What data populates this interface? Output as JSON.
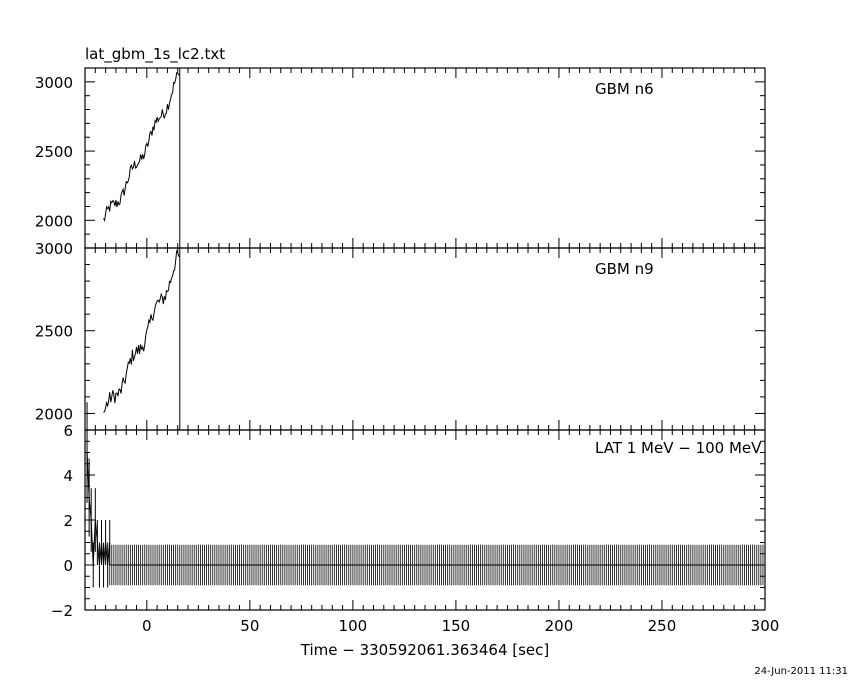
{
  "title": "lat_gbm_1s_lc2.txt",
  "xlabel": "Time − 330592061.363464 [sec]",
  "footer": "24-Jun-2011 11:31",
  "chart_data": [
    {
      "type": "line",
      "series_label": "GBM n6",
      "xlim": [
        -30,
        300
      ],
      "ylim": [
        1800,
        3100
      ],
      "y_ticks": [
        2000,
        2500,
        3000
      ],
      "data_range_x": [
        -21,
        16
      ],
      "y_start": 2000,
      "y_end": 3050,
      "end_marker_x": 16
    },
    {
      "type": "line",
      "series_label": "GBM n9",
      "xlim": [
        -30,
        300
      ],
      "ylim": [
        1900,
        3000
      ],
      "y_ticks": [
        2000,
        2500,
        3000
      ],
      "data_range_x": [
        -21,
        16
      ],
      "y_start": 2000,
      "y_end": 2950,
      "end_marker_x": 16
    },
    {
      "type": "line",
      "series_label": "LAT 1 MeV − 100 MeV",
      "xlim": [
        -30,
        300
      ],
      "ylim": [
        -2,
        6
      ],
      "y_ticks": [
        -2,
        0,
        2,
        4,
        6
      ],
      "x_ticks": [
        0,
        50,
        100,
        150,
        200,
        250,
        300
      ],
      "error_bar_half_width": 0.9,
      "early_counts": [
        {
          "x": -29,
          "y": 5
        },
        {
          "x": -28,
          "y": 3
        },
        {
          "x": -27,
          "y": 2
        },
        {
          "x": -26,
          "y": 0
        },
        {
          "x": -25,
          "y": 2
        },
        {
          "x": -24,
          "y": 1
        },
        {
          "x": -23,
          "y": 0
        },
        {
          "x": -22,
          "y": 1
        },
        {
          "x": -21,
          "y": 0
        },
        {
          "x": -20,
          "y": 1
        },
        {
          "x": -19,
          "y": 0
        },
        {
          "x": -18,
          "y": 1
        }
      ],
      "baseline_y": 0
    }
  ],
  "colors": {
    "axis": "#000000",
    "data": "#000000",
    "background": "#ffffff"
  }
}
